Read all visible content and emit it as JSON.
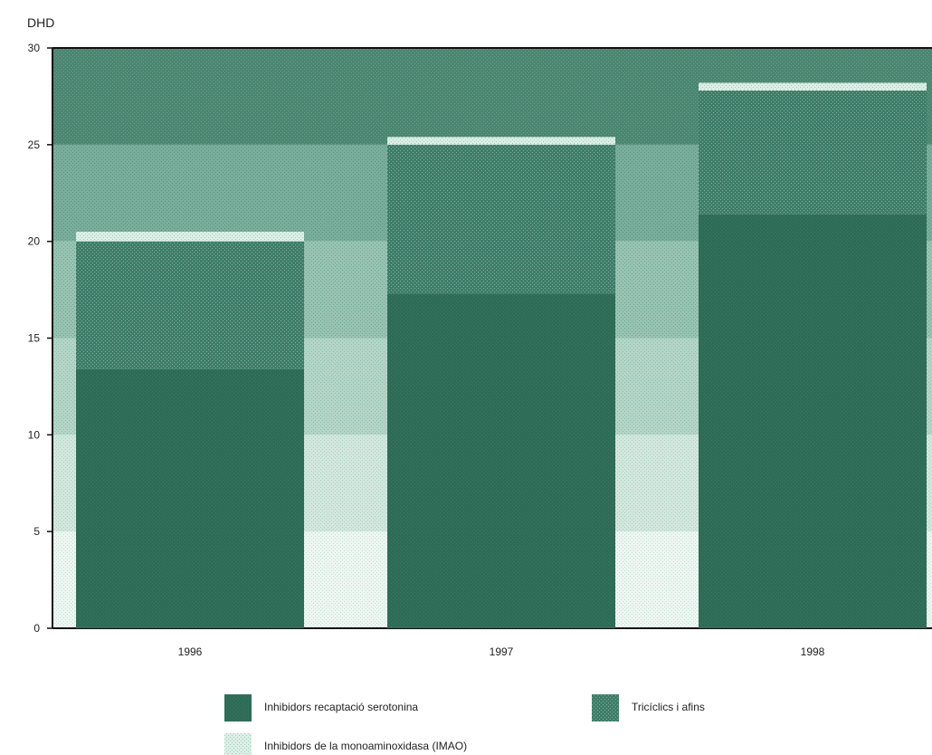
{
  "chart_data": {
    "type": "bar",
    "stacked": true,
    "ylabel": "DHD",
    "xlabel": "",
    "ylim": [
      0,
      30
    ],
    "yticks": [
      "0",
      "5",
      "10",
      "15",
      "20",
      "25",
      "30"
    ],
    "categories": [
      "1996",
      "1997",
      "1998"
    ],
    "series": [
      {
        "name": "Inhibidors recaptació serotonina",
        "values": [
          13.4,
          17.3,
          21.4
        ],
        "color": "#2e6b56"
      },
      {
        "name": "Tricíclics i afins",
        "values": [
          6.6,
          7.7,
          6.4
        ],
        "color": "#4e8a77"
      },
      {
        "name": "Inhibidors de la monoaminoxidasa (IMAO)",
        "values": [
          0.5,
          0.4,
          0.4
        ],
        "color": "#c8e3d8"
      }
    ],
    "grid": "banded background",
    "legend_position": "bottom"
  }
}
